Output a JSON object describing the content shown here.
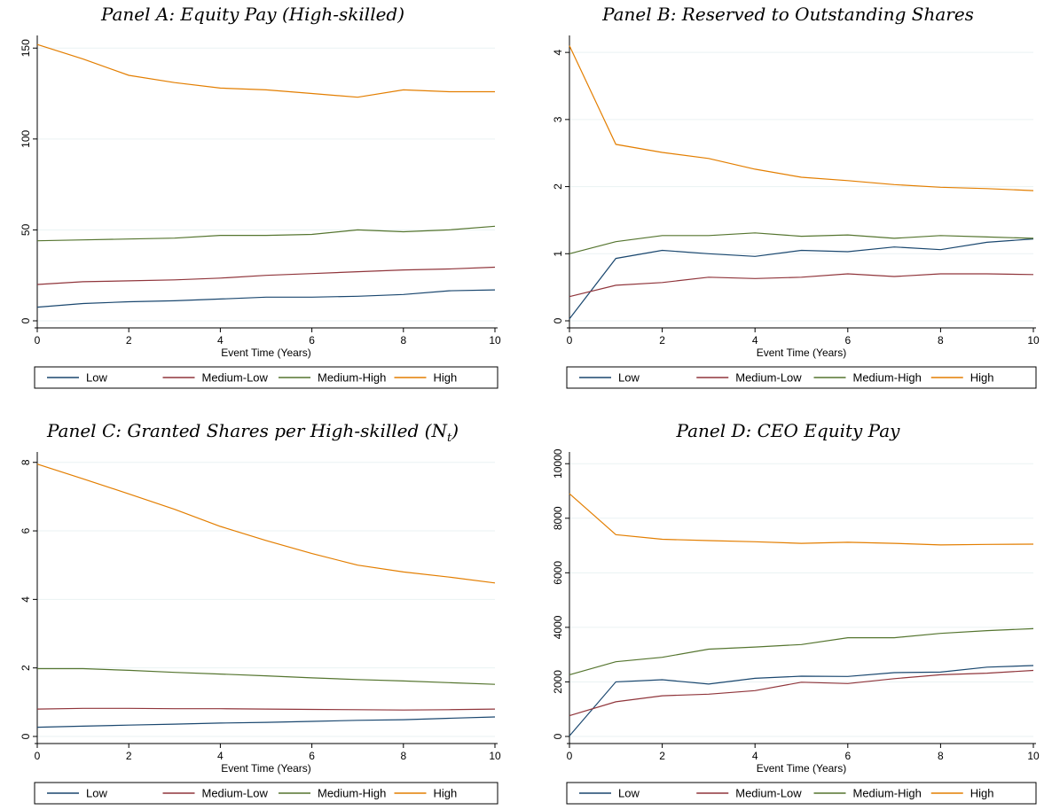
{
  "colors": {
    "Low": "#1a476f",
    "Medium-Low": "#90353b",
    "Medium-High": "#55752f",
    "High": "#e37e00",
    "grid": "#eaf2f3",
    "axis": "#000000"
  },
  "legend_labels": [
    "Low",
    "Medium-Low",
    "Medium-High",
    "High"
  ],
  "chart_data": [
    {
      "type": "line",
      "title": "Panel A: Equity Pay (High-skilled)",
      "xlabel": "Event Time (Years)",
      "ylabel": "",
      "x": [
        0,
        1,
        2,
        3,
        4,
        5,
        6,
        7,
        8,
        9,
        10
      ],
      "xticks": [
        0,
        2,
        4,
        6,
        8,
        10
      ],
      "xlim": [
        0,
        10
      ],
      "ylim": [
        0,
        155
      ],
      "yticks": [
        0,
        50,
        100,
        150
      ],
      "grid": true,
      "legend": "bottom",
      "series": [
        {
          "name": "Low",
          "values": [
            7.5,
            9.5,
            10.5,
            11,
            12,
            13,
            13,
            13.5,
            14.5,
            16.5,
            17
          ]
        },
        {
          "name": "Medium-Low",
          "values": [
            20,
            21.5,
            22,
            22.5,
            23.5,
            25,
            26,
            27,
            28,
            28.5,
            29.5
          ]
        },
        {
          "name": "Medium-High",
          "values": [
            44,
            44.5,
            45,
            45.5,
            47,
            47,
            47.5,
            50,
            49,
            50,
            52
          ]
        },
        {
          "name": "High",
          "values": [
            152,
            144,
            135,
            131,
            128,
            127,
            125,
            123,
            127,
            126,
            126
          ]
        }
      ]
    },
    {
      "type": "line",
      "title": "Panel B: Reserved to Outstanding Shares",
      "xlabel": "Event Time (Years)",
      "ylabel": "",
      "x": [
        0,
        1,
        2,
        3,
        4,
        5,
        6,
        7,
        8,
        9,
        10
      ],
      "xticks": [
        0,
        2,
        4,
        6,
        8,
        10
      ],
      "xlim": [
        0,
        10
      ],
      "ylim": [
        0,
        4.2
      ],
      "yticks": [
        0,
        1,
        2,
        3,
        4
      ],
      "grid": true,
      "legend": "bottom",
      "series": [
        {
          "name": "Low",
          "values": [
            0.03,
            0.93,
            1.05,
            1.0,
            0.96,
            1.05,
            1.03,
            1.1,
            1.06,
            1.17,
            1.22
          ]
        },
        {
          "name": "Medium-Low",
          "values": [
            0.36,
            0.53,
            0.57,
            0.65,
            0.63,
            0.65,
            0.7,
            0.66,
            0.7,
            0.7,
            0.69
          ]
        },
        {
          "name": "Medium-High",
          "values": [
            1.0,
            1.18,
            1.27,
            1.27,
            1.31,
            1.26,
            1.28,
            1.23,
            1.27,
            1.25,
            1.23
          ]
        },
        {
          "name": "High",
          "values": [
            4.1,
            2.63,
            2.51,
            2.42,
            2.26,
            2.14,
            2.09,
            2.03,
            1.99,
            1.97,
            1.94
          ]
        }
      ]
    },
    {
      "type": "line",
      "title": "Panel C: Granted Shares per High-skilled (N",
      "title_sub": "t",
      "title_end": ")",
      "xlabel": "Event Time (Years)",
      "ylabel": "",
      "x": [
        0,
        1,
        2,
        3,
        4,
        5,
        6,
        7,
        8,
        9,
        10
      ],
      "xticks": [
        0,
        2,
        4,
        6,
        8,
        10
      ],
      "xlim": [
        0,
        10
      ],
      "ylim": [
        0,
        8.2
      ],
      "yticks": [
        0,
        2,
        4,
        6,
        8
      ],
      "grid": true,
      "legend": "bottom",
      "series": [
        {
          "name": "Low",
          "values": [
            0.27,
            0.3,
            0.33,
            0.36,
            0.39,
            0.41,
            0.44,
            0.47,
            0.49,
            0.53,
            0.57
          ]
        },
        {
          "name": "Medium-Low",
          "values": [
            0.8,
            0.82,
            0.82,
            0.81,
            0.81,
            0.8,
            0.79,
            0.78,
            0.77,
            0.78,
            0.8
          ]
        },
        {
          "name": "Medium-High",
          "values": [
            1.98,
            1.98,
            1.93,
            1.87,
            1.82,
            1.77,
            1.71,
            1.66,
            1.62,
            1.57,
            1.52
          ]
        },
        {
          "name": "High",
          "values": [
            7.95,
            7.52,
            7.08,
            6.63,
            6.13,
            5.72,
            5.34,
            5.0,
            4.8,
            4.65,
            4.48
          ]
        }
      ]
    },
    {
      "type": "line",
      "title": "Panel D: CEO Equity Pay",
      "xlabel": "Event Time (Years)",
      "ylabel": "",
      "x": [
        0,
        1,
        2,
        3,
        4,
        5,
        6,
        7,
        8,
        9,
        10
      ],
      "xticks": [
        0,
        2,
        4,
        6,
        8,
        10
      ],
      "xlim": [
        0,
        10
      ],
      "ylim": [
        0,
        10300
      ],
      "yticks": [
        0,
        2000,
        4000,
        6000,
        8000,
        10000
      ],
      "grid": true,
      "legend": "bottom",
      "series": [
        {
          "name": "Low",
          "values": [
            20,
            2000,
            2080,
            1920,
            2130,
            2210,
            2200,
            2340,
            2360,
            2540,
            2600
          ]
        },
        {
          "name": "Medium-Low",
          "values": [
            760,
            1270,
            1490,
            1550,
            1680,
            1990,
            1940,
            2120,
            2260,
            2320,
            2420
          ]
        },
        {
          "name": "Medium-High",
          "values": [
            2260,
            2740,
            2900,
            3200,
            3280,
            3370,
            3620,
            3620,
            3780,
            3880,
            3950
          ]
        },
        {
          "name": "High",
          "values": [
            8900,
            7400,
            7230,
            7180,
            7140,
            7080,
            7120,
            7080,
            7020,
            7040,
            7050
          ]
        }
      ]
    }
  ]
}
